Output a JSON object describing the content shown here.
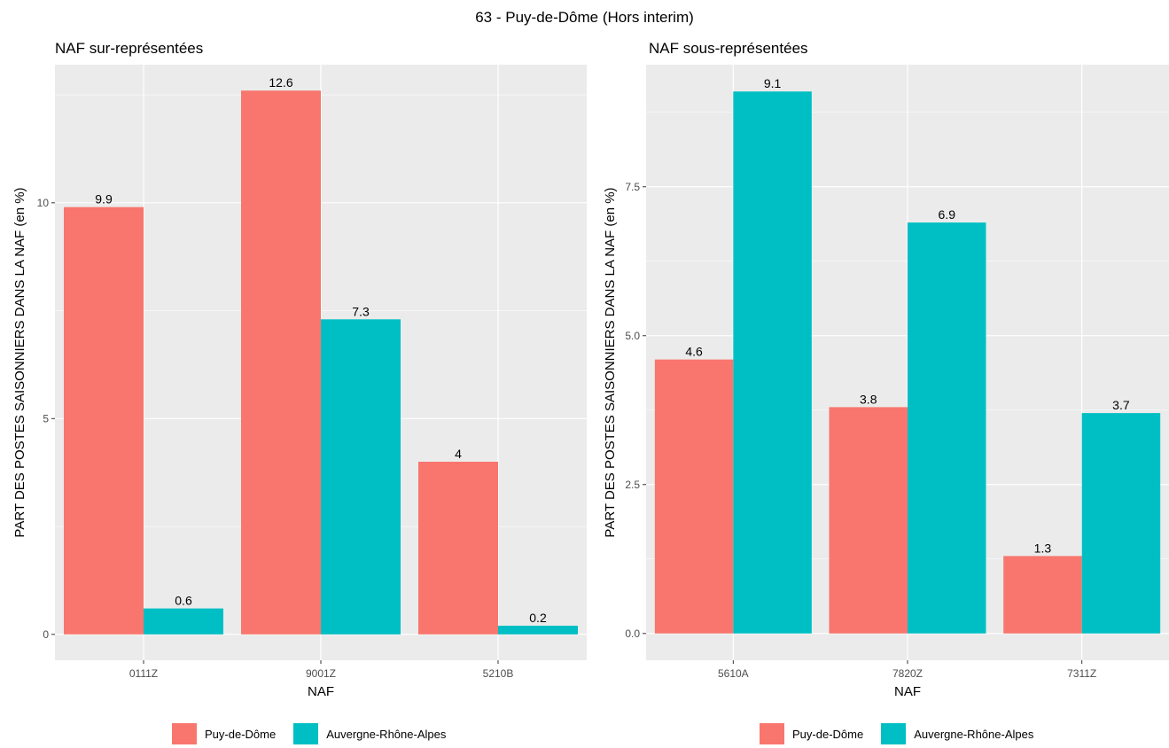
{
  "title": "63 - Puy-de-Dôme (Hors interim)",
  "colors": {
    "Puy-de-Dôme": "#F8766D",
    "Auvergne-Rhône-Alpes": "#00BFC4",
    "panel_bg": "#EBEBEB",
    "grid": "#FFFFFF"
  },
  "chart_data": [
    {
      "type": "bar",
      "title": "NAF sur-représentées",
      "xlabel": "NAF",
      "ylabel": "PART DES POSTES SAISONNIERS DANS LA NAF (en %)",
      "categories": [
        "0111Z",
        "9001Z",
        "5210B"
      ],
      "series": [
        {
          "name": "Puy-de-Dôme",
          "values": [
            9.9,
            12.6,
            4
          ]
        },
        {
          "name": "Auvergne-Rhône-Alpes",
          "values": [
            0.6,
            7.3,
            0.2
          ]
        }
      ],
      "data_labels": [
        [
          "9.9",
          "12.6",
          "4"
        ],
        [
          "0.6",
          "7.3",
          "0.2"
        ]
      ],
      "yticks": [
        0,
        5,
        10
      ],
      "ytick_labels": [
        "0",
        "5",
        "10"
      ],
      "ylim": [
        -0.6,
        13.2
      ],
      "legend_position": "bottom",
      "grid": true
    },
    {
      "type": "bar",
      "title": "NAF sous-représentées",
      "xlabel": "NAF",
      "ylabel": "PART DES POSTES SAISONNIERS DANS LA NAF (en %)",
      "categories": [
        "5610A",
        "7820Z",
        "7311Z"
      ],
      "series": [
        {
          "name": "Puy-de-Dôme",
          "values": [
            4.6,
            3.8,
            1.3
          ]
        },
        {
          "name": "Auvergne-Rhône-Alpes",
          "values": [
            9.1,
            6.9,
            3.7
          ]
        }
      ],
      "data_labels": [
        [
          "4.6",
          "3.8",
          "1.3"
        ],
        [
          "9.1",
          "6.9",
          "3.7"
        ]
      ],
      "yticks": [
        0,
        2.5,
        5,
        7.5
      ],
      "ytick_labels": [
        "0.0",
        "2.5",
        "5.0",
        "7.5"
      ],
      "ylim": [
        -0.45,
        9.55
      ],
      "legend_position": "bottom",
      "grid": true
    }
  ]
}
